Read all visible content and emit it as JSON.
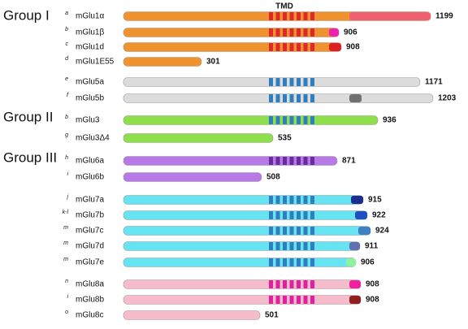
{
  "tmd_label": "TMD",
  "groups": [
    {
      "label": "Group I",
      "receptors": [
        {
          "sup": "a",
          "name": "mGlu1α",
          "length": "1199"
        },
        {
          "sup": "b",
          "name": "mGlu1β",
          "length": "906"
        },
        {
          "sup": "c",
          "name": "mGlu1d",
          "length": "908"
        },
        {
          "sup": "d",
          "name": "mGlu1E55",
          "length": "301"
        },
        {
          "sup": "e",
          "name": "mGlu5a",
          "length": "1171"
        },
        {
          "sup": "f",
          "name": "mGlu5b",
          "length": "1203"
        }
      ]
    },
    {
      "label": "Group II",
      "receptors": [
        {
          "sup": "b",
          "name": "mGlu3",
          "length": "936"
        },
        {
          "sup": "g",
          "name": "mGlu3Δ4",
          "length": "535"
        }
      ]
    },
    {
      "label": "Group III",
      "receptors": [
        {
          "sup": "h",
          "name": "mGlu6a",
          "length": "871"
        },
        {
          "sup": "i",
          "name": "mGlu6b",
          "length": "508"
        },
        {
          "sup": "j",
          "name": "mGlu7a",
          "length": "915"
        },
        {
          "sup": "k-l",
          "name": "mGlu7b",
          "length": "922"
        },
        {
          "sup": "m",
          "name": "mGlu7c",
          "length": "924"
        },
        {
          "sup": "m",
          "name": "mGlu7d",
          "length": "911"
        },
        {
          "sup": "m",
          "name": "mGlu7e",
          "length": "906"
        },
        {
          "sup": "n",
          "name": "mGlu8a",
          "length": "908"
        },
        {
          "sup": "i",
          "name": "mGlu8b",
          "length": "908"
        },
        {
          "sup": "o",
          "name": "mGlu8c",
          "length": "501"
        }
      ]
    }
  ]
}
